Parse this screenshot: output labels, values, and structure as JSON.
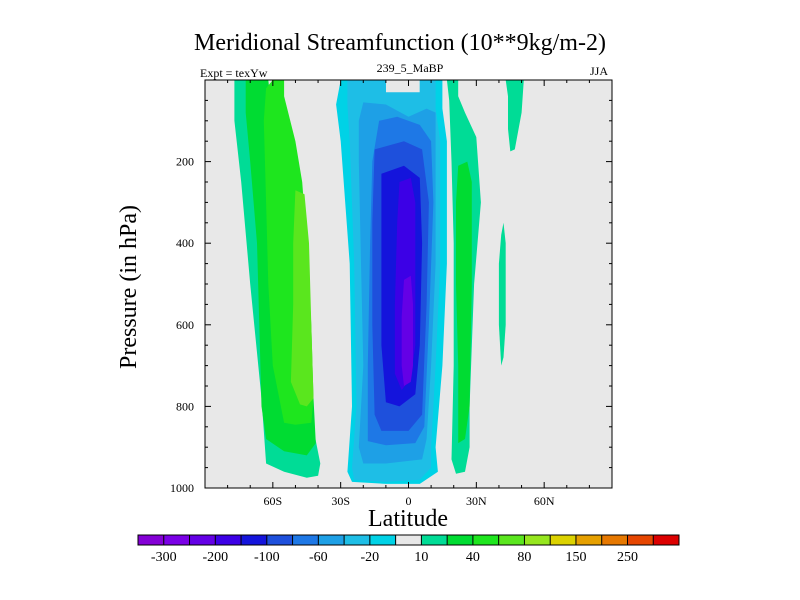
{
  "chart_data": {
    "type": "heatmap",
    "title": "Meridional Streamfunction (10**9kg/m-2)",
    "left_label": "Expt = texYw",
    "center_label": "239_5_MaBP",
    "right_label": "JJA",
    "xlabel": "Latitude",
    "ylabel": "Pressure (in hPa)",
    "x_tick_labels": [
      "60S",
      "30S",
      "0",
      "30N",
      "60N"
    ],
    "x_ticks": [
      -60,
      -30,
      0,
      30,
      60
    ],
    "y_tick_labels": [
      "200",
      "400",
      "600",
      "800",
      "1000"
    ],
    "y_ticks": [
      200,
      400,
      600,
      800,
      1000
    ],
    "xlim": [
      -90,
      90
    ],
    "ylim": [
      1000,
      0
    ],
    "contour_levels": [
      -300,
      -250,
      -200,
      -150,
      -100,
      -80,
      -60,
      -40,
      -20,
      -10,
      10,
      20,
      40,
      60,
      80,
      100,
      150,
      200,
      250,
      300
    ],
    "colorbar_labels": [
      "-300",
      "-200",
      "-100",
      "-60",
      "-20",
      "10",
      "40",
      "80",
      "150",
      "250"
    ],
    "colorbar_colors": [
      "#8400d6",
      "#7a00e6",
      "#6400e6",
      "#3c00e6",
      "#1414dc",
      "#1e50dc",
      "#1e78e6",
      "#1ea0e6",
      "#1ebee6",
      "#00d2e6",
      "#e8e8e8",
      "#00dc96",
      "#00dc32",
      "#1ee61e",
      "#5ae61e",
      "#96e61e",
      "#dcd200",
      "#e6a000",
      "#e67800",
      "#e64600",
      "#dc0000"
    ],
    "below_color": "#8400d6",
    "above_color": "#dc0000",
    "background_color": "#e8e8e8",
    "regions": [
      {
        "level": -10,
        "polygon": [
          [
            -30,
            0
          ],
          [
            -10,
            0
          ],
          [
            -10,
            45
          ],
          [
            5,
            45
          ],
          [
            5,
            0
          ],
          [
            15,
            0
          ],
          [
            15,
            70
          ],
          [
            17,
            150
          ],
          [
            17,
            450
          ],
          [
            15,
            700
          ],
          [
            12,
            900
          ],
          [
            13,
            960
          ],
          [
            5,
            990
          ],
          [
            -10,
            990
          ],
          [
            -25,
            985
          ],
          [
            -27,
            960
          ],
          [
            -25,
            800
          ],
          [
            -26,
            450
          ],
          [
            -30,
            150
          ],
          [
            -32,
            60
          ]
        ]
      },
      {
        "level": -20,
        "polygon": [
          [
            -27,
            0
          ],
          [
            -10,
            0
          ],
          [
            -10,
            30
          ],
          [
            5,
            30
          ],
          [
            5,
            0
          ],
          [
            12,
            0
          ],
          [
            12,
            70
          ],
          [
            14,
            150
          ],
          [
            14,
            450
          ],
          [
            12,
            700
          ],
          [
            10,
            900
          ],
          [
            10,
            950
          ],
          [
            5,
            980
          ],
          [
            -10,
            985
          ],
          [
            -24,
            980
          ],
          [
            -25,
            950
          ],
          [
            -23,
            800
          ],
          [
            -24,
            450
          ],
          [
            -26,
            150
          ],
          [
            -27,
            60
          ]
        ]
      },
      {
        "level": -40,
        "polygon": [
          [
            -20,
            55
          ],
          [
            -10,
            60
          ],
          [
            0,
            90
          ],
          [
            8,
            70
          ],
          [
            12,
            80
          ],
          [
            12,
            150
          ],
          [
            12,
            450
          ],
          [
            10,
            700
          ],
          [
            8,
            880
          ],
          [
            6,
            930
          ],
          [
            -10,
            940
          ],
          [
            -20,
            940
          ],
          [
            -22,
            900
          ],
          [
            -20,
            700
          ],
          [
            -21,
            450
          ],
          [
            -22,
            200
          ],
          [
            -22,
            100
          ]
        ]
      },
      {
        "level": -60,
        "polygon": [
          [
            -13,
            100
          ],
          [
            -5,
            90
          ],
          [
            5,
            110
          ],
          [
            10,
            150
          ],
          [
            11,
            300
          ],
          [
            9,
            600
          ],
          [
            7,
            850
          ],
          [
            3,
            890
          ],
          [
            -10,
            895
          ],
          [
            -18,
            885
          ],
          [
            -18,
            700
          ],
          [
            -17,
            400
          ],
          [
            -16,
            200
          ]
        ]
      },
      {
        "level": -80,
        "polygon": [
          [
            -15,
            170
          ],
          [
            -2,
            150
          ],
          [
            6,
            170
          ],
          [
            9,
            300
          ],
          [
            8,
            550
          ],
          [
            6,
            820
          ],
          [
            0,
            860
          ],
          [
            -12,
            860
          ],
          [
            -15,
            820
          ],
          [
            -16,
            600
          ],
          [
            -16,
            350
          ]
        ]
      },
      {
        "level": -100,
        "polygon": [
          [
            -12,
            230
          ],
          [
            -2,
            210
          ],
          [
            5,
            240
          ],
          [
            6,
            400
          ],
          [
            5,
            650
          ],
          [
            3,
            770
          ],
          [
            -4,
            800
          ],
          [
            -10,
            790
          ],
          [
            -12,
            650
          ],
          [
            -12,
            400
          ]
        ]
      },
      {
        "level": -150,
        "polygon": [
          [
            -4,
            250
          ],
          [
            1,
            240
          ],
          [
            3,
            300
          ],
          [
            3,
            450
          ],
          [
            3,
            650
          ],
          [
            1,
            730
          ],
          [
            -3,
            760
          ],
          [
            -6,
            720
          ],
          [
            -6,
            550
          ],
          [
            -5,
            350
          ]
        ]
      },
      {
        "level": -200,
        "polygon": [
          [
            -2,
            490
          ],
          [
            1,
            480
          ],
          [
            2,
            550
          ],
          [
            2,
            700
          ],
          [
            1,
            740
          ],
          [
            -2,
            750
          ],
          [
            -3,
            700
          ],
          [
            -3,
            580
          ]
        ]
      },
      {
        "level": 10,
        "polygon": [
          [
            -77,
            0
          ],
          [
            -71,
            0
          ],
          [
            -69,
            60
          ],
          [
            -64,
            170
          ],
          [
            -60,
            300
          ],
          [
            -57,
            500
          ],
          [
            -51,
            650
          ],
          [
            -44,
            800
          ],
          [
            -39,
            940
          ],
          [
            -40,
            970
          ],
          [
            -45,
            975
          ],
          [
            -55,
            960
          ],
          [
            -63,
            940
          ],
          [
            -65,
            780
          ],
          [
            -70,
            500
          ],
          [
            -74,
            250
          ],
          [
            -77,
            100
          ]
        ]
      },
      {
        "level": 20,
        "polygon": [
          [
            -72,
            0
          ],
          [
            -62,
            0
          ],
          [
            -60,
            100
          ],
          [
            -56,
            200
          ],
          [
            -52,
            300
          ],
          [
            -47,
            450
          ],
          [
            -45,
            600
          ],
          [
            -42,
            780
          ],
          [
            -41,
            890
          ],
          [
            -45,
            920
          ],
          [
            -55,
            910
          ],
          [
            -63,
            880
          ],
          [
            -65,
            800
          ],
          [
            -66,
            600
          ],
          [
            -67,
            400
          ],
          [
            -70,
            200
          ],
          [
            -72,
            80
          ]
        ]
      },
      {
        "level": 40,
        "polygon": [
          [
            -60,
            0
          ],
          [
            -55,
            0
          ],
          [
            -55,
            40
          ],
          [
            -50,
            150
          ],
          [
            -47,
            250
          ],
          [
            -45,
            400
          ],
          [
            -43,
            600
          ],
          [
            -42,
            780
          ],
          [
            -43,
            840
          ],
          [
            -50,
            845
          ],
          [
            -55,
            840
          ],
          [
            -60,
            700
          ],
          [
            -62,
            500
          ],
          [
            -63,
            300
          ],
          [
            -64,
            100
          ],
          [
            -63,
            20
          ]
        ]
      },
      {
        "level": 60,
        "polygon": [
          [
            -50,
            270
          ],
          [
            -46,
            280
          ],
          [
            -44,
            400
          ],
          [
            -43,
            600
          ],
          [
            -42,
            780
          ],
          [
            -45,
            800
          ],
          [
            -48,
            795
          ],
          [
            -52,
            740
          ],
          [
            -51,
            550
          ],
          [
            -51,
            400
          ]
        ]
      },
      {
        "level": 10,
        "polygon": [
          [
            17,
            0
          ],
          [
            22,
            0
          ],
          [
            22,
            40
          ],
          [
            25,
            80
          ],
          [
            30,
            140
          ],
          [
            32,
            300
          ],
          [
            29,
            500
          ],
          [
            27,
            800
          ],
          [
            27,
            900
          ],
          [
            25,
            960
          ],
          [
            21,
            965
          ],
          [
            19,
            930
          ],
          [
            20,
            700
          ],
          [
            20,
            400
          ],
          [
            19,
            200
          ],
          [
            18,
            50
          ]
        ]
      },
      {
        "level": 20,
        "polygon": [
          [
            22,
            210
          ],
          [
            26,
            200
          ],
          [
            28,
            250
          ],
          [
            28,
            500
          ],
          [
            27,
            800
          ],
          [
            25,
            880
          ],
          [
            22,
            890
          ],
          [
            22,
            700
          ],
          [
            21,
            500
          ],
          [
            21,
            300
          ]
        ]
      },
      {
        "level": 10,
        "polygon": [
          [
            41,
            380
          ],
          [
            42,
            350
          ],
          [
            43,
            400
          ],
          [
            43,
            600
          ],
          [
            42,
            680
          ],
          [
            41,
            700
          ],
          [
            40,
            600
          ],
          [
            40,
            450
          ]
        ]
      },
      {
        "level": 10,
        "polygon": [
          [
            43,
            0
          ],
          [
            51,
            0
          ],
          [
            50,
            80
          ],
          [
            47,
            170
          ],
          [
            45,
            175
          ],
          [
            44,
            120
          ],
          [
            44,
            40
          ]
        ]
      }
    ]
  }
}
